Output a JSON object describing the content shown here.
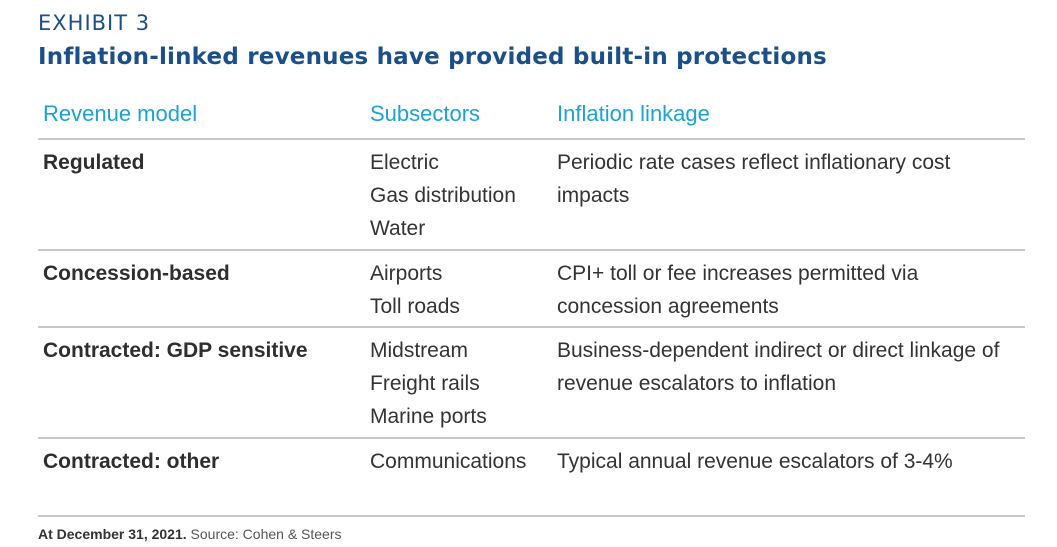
{
  "exhibit": {
    "label": "EXHIBIT 3",
    "title": "Inflation-linked revenues have provided built-in protections"
  },
  "table": {
    "headers": [
      "Revenue model",
      "Subsectors",
      "Inflation linkage"
    ],
    "rows": [
      {
        "model": "Regulated",
        "subsectors": [
          "Electric",
          "Gas distribution",
          "Water"
        ],
        "linkage": "Periodic rate cases reflect inflationary cost impacts"
      },
      {
        "model": "Concession-based",
        "subsectors": [
          "Airports",
          "Toll roads"
        ],
        "linkage": "CPI+ toll or fee increases permitted via concession agreements"
      },
      {
        "model": "Contracted: GDP sensitive",
        "subsectors": [
          "Midstream",
          "Freight rails",
          "Marine ports"
        ],
        "linkage": "Business-dependent indirect or direct linkage of revenue escalators to inflation"
      },
      {
        "model": "Contracted: other",
        "subsectors": [
          "Communications"
        ],
        "linkage": "Typical annual revenue escalators of 3-4%"
      }
    ]
  },
  "footer": {
    "date": "At December 31, 2021.",
    "source": "Source: Cohen & Steers"
  }
}
